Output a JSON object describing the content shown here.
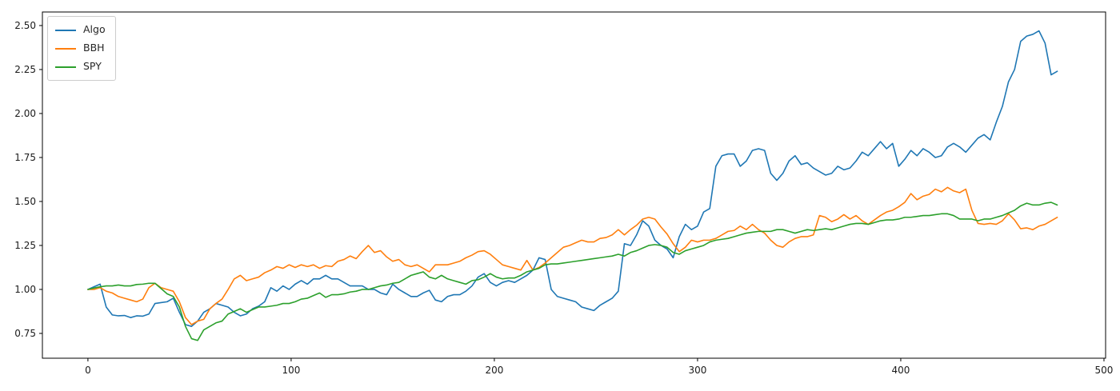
{
  "figure": {
    "background": "#ffffff",
    "axis_color": "#000000",
    "tick_label_color": "#1a1a1a"
  },
  "chart_data": {
    "type": "line",
    "title": "",
    "xlabel": "",
    "ylabel": "",
    "grid": false,
    "legend_position": "upper left",
    "xlim": [
      -22.4,
      500.8
    ],
    "ylim": [
      0.609,
      2.577
    ],
    "xticks": [
      0,
      100,
      200,
      300,
      400,
      500
    ],
    "xtick_labels": [
      "0",
      "100",
      "200",
      "300",
      "400",
      "500"
    ],
    "yticks": [
      0.75,
      1.0,
      1.25,
      1.5,
      1.75,
      2.0,
      2.25,
      2.5
    ],
    "ytick_labels": [
      "0.75",
      "1.00",
      "1.25",
      "1.50",
      "1.75",
      "2.00",
      "2.25",
      "2.50"
    ],
    "x": [
      0,
      3,
      6,
      9,
      12,
      15,
      18,
      21,
      24,
      27,
      30,
      33,
      36,
      39,
      42,
      45,
      48,
      51,
      54,
      57,
      60,
      63,
      66,
      69,
      72,
      75,
      78,
      81,
      84,
      87,
      90,
      93,
      96,
      99,
      102,
      105,
      108,
      111,
      114,
      117,
      120,
      123,
      126,
      129,
      132,
      135,
      138,
      141,
      144,
      147,
      150,
      153,
      156,
      159,
      162,
      165,
      168,
      171,
      174,
      177,
      180,
      183,
      186,
      189,
      192,
      195,
      198,
      201,
      204,
      207,
      210,
      213,
      216,
      219,
      222,
      225,
      228,
      231,
      234,
      237,
      240,
      243,
      246,
      249,
      252,
      255,
      258,
      261,
      264,
      267,
      270,
      273,
      276,
      279,
      282,
      285,
      288,
      291,
      294,
      297,
      300,
      303,
      306,
      309,
      312,
      315,
      318,
      321,
      324,
      327,
      330,
      333,
      336,
      339,
      342,
      345,
      348,
      351,
      354,
      357,
      360,
      363,
      366,
      369,
      372,
      375,
      378,
      381,
      384,
      387,
      390,
      393,
      396,
      399,
      402,
      405,
      408,
      411,
      414,
      417,
      420,
      423,
      426,
      429,
      432,
      435,
      438,
      441,
      444,
      447,
      450,
      453,
      456,
      459,
      462,
      465,
      468,
      471,
      474,
      477
    ],
    "series": [
      {
        "name": "Algo",
        "color": "#1f77b4",
        "values": [
          1,
          1.015,
          1.03,
          0.9,
          0.855,
          0.85,
          0.852,
          0.84,
          0.85,
          0.848,
          0.86,
          0.92,
          0.925,
          0.93,
          0.95,
          0.87,
          0.8,
          0.79,
          0.82,
          0.87,
          0.89,
          0.92,
          0.91,
          0.9,
          0.87,
          0.85,
          0.86,
          0.89,
          0.905,
          0.93,
          1.01,
          0.99,
          1.02,
          1,
          1.03,
          1.05,
          1.03,
          1.06,
          1.06,
          1.08,
          1.06,
          1.06,
          1.04,
          1.02,
          1.02,
          1.02,
          1,
          1,
          0.98,
          0.97,
          1.03,
          1,
          0.98,
          0.96,
          0.96,
          0.98,
          0.995,
          0.94,
          0.93,
          0.96,
          0.97,
          0.97,
          0.99,
          1.02,
          1.07,
          1.09,
          1.04,
          1.02,
          1.04,
          1.05,
          1.04,
          1.06,
          1.08,
          1.11,
          1.18,
          1.17,
          1,
          0.96,
          0.95,
          0.94,
          0.93,
          0.9,
          0.89,
          0.88,
          0.91,
          0.93,
          0.95,
          0.99,
          1.26,
          1.25,
          1.31,
          1.39,
          1.36,
          1.28,
          1.25,
          1.23,
          1.18,
          1.3,
          1.37,
          1.34,
          1.36,
          1.44,
          1.46,
          1.7,
          1.76,
          1.77,
          1.77,
          1.7,
          1.73,
          1.79,
          1.8,
          1.79,
          1.66,
          1.62,
          1.66,
          1.73,
          1.76,
          1.71,
          1.72,
          1.69,
          1.67,
          1.65,
          1.66,
          1.7,
          1.68,
          1.69,
          1.73,
          1.78,
          1.76,
          1.8,
          1.84,
          1.8,
          1.83,
          1.7,
          1.74,
          1.79,
          1.76,
          1.8,
          1.78,
          1.75,
          1.76,
          1.81,
          1.83,
          1.81,
          1.78,
          1.82,
          1.86,
          1.88,
          1.85,
          1.95,
          2.04,
          2.18,
          2.25,
          2.41,
          2.44,
          2.45,
          2.47,
          2.4,
          2.22,
          2.24
        ]
      },
      {
        "name": "BBH",
        "color": "#ff7f0e",
        "values": [
          1,
          1,
          1.01,
          0.99,
          0.98,
          0.96,
          0.95,
          0.94,
          0.93,
          0.945,
          1.01,
          1.035,
          1.01,
          1,
          0.99,
          0.93,
          0.84,
          0.8,
          0.82,
          0.83,
          0.89,
          0.92,
          0.945,
          1,
          1.06,
          1.08,
          1.05,
          1.06,
          1.07,
          1.095,
          1.11,
          1.13,
          1.12,
          1.14,
          1.125,
          1.14,
          1.13,
          1.14,
          1.12,
          1.135,
          1.13,
          1.16,
          1.17,
          1.19,
          1.175,
          1.215,
          1.25,
          1.21,
          1.22,
          1.185,
          1.16,
          1.17,
          1.14,
          1.13,
          1.14,
          1.12,
          1.1,
          1.14,
          1.14,
          1.14,
          1.15,
          1.16,
          1.18,
          1.195,
          1.215,
          1.22,
          1.2,
          1.17,
          1.14,
          1.13,
          1.12,
          1.11,
          1.165,
          1.11,
          1.125,
          1.15,
          1.18,
          1.21,
          1.24,
          1.25,
          1.265,
          1.28,
          1.27,
          1.27,
          1.29,
          1.295,
          1.31,
          1.34,
          1.31,
          1.34,
          1.365,
          1.4,
          1.41,
          1.4,
          1.355,
          1.315,
          1.26,
          1.215,
          1.24,
          1.28,
          1.27,
          1.28,
          1.28,
          1.29,
          1.31,
          1.33,
          1.335,
          1.36,
          1.34,
          1.37,
          1.34,
          1.32,
          1.28,
          1.25,
          1.24,
          1.27,
          1.29,
          1.3,
          1.3,
          1.31,
          1.42,
          1.41,
          1.385,
          1.4,
          1.425,
          1.4,
          1.42,
          1.39,
          1.37,
          1.395,
          1.42,
          1.44,
          1.45,
          1.47,
          1.495,
          1.545,
          1.51,
          1.53,
          1.54,
          1.57,
          1.555,
          1.58,
          1.56,
          1.55,
          1.57,
          1.45,
          1.375,
          1.37,
          1.375,
          1.37,
          1.39,
          1.43,
          1.395,
          1.345,
          1.35,
          1.34,
          1.36,
          1.37,
          1.39,
          1.41
        ]
      },
      {
        "name": "SPY",
        "color": "#2ca02c",
        "values": [
          1,
          1.008,
          1.015,
          1.02,
          1.02,
          1.025,
          1.02,
          1.02,
          1.028,
          1.03,
          1.035,
          1.035,
          1.005,
          0.975,
          0.96,
          0.9,
          0.79,
          0.72,
          0.71,
          0.77,
          0.79,
          0.81,
          0.82,
          0.86,
          0.875,
          0.89,
          0.87,
          0.885,
          0.9,
          0.9,
          0.905,
          0.91,
          0.92,
          0.92,
          0.93,
          0.945,
          0.95,
          0.965,
          0.98,
          0.955,
          0.97,
          0.97,
          0.975,
          0.985,
          0.99,
          1,
          1,
          1.01,
          1.02,
          1.025,
          1.035,
          1.04,
          1.06,
          1.08,
          1.09,
          1.1,
          1.07,
          1.06,
          1.08,
          1.06,
          1.05,
          1.04,
          1.03,
          1.05,
          1.055,
          1.07,
          1.09,
          1.07,
          1.06,
          1.065,
          1.065,
          1.08,
          1.1,
          1.11,
          1.12,
          1.14,
          1.145,
          1.145,
          1.15,
          1.155,
          1.16,
          1.165,
          1.17,
          1.175,
          1.18,
          1.185,
          1.19,
          1.2,
          1.19,
          1.21,
          1.22,
          1.235,
          1.25,
          1.255,
          1.25,
          1.24,
          1.21,
          1.2,
          1.22,
          1.23,
          1.24,
          1.25,
          1.27,
          1.28,
          1.285,
          1.29,
          1.3,
          1.31,
          1.32,
          1.325,
          1.33,
          1.33,
          1.33,
          1.34,
          1.34,
          1.33,
          1.32,
          1.33,
          1.34,
          1.335,
          1.34,
          1.345,
          1.34,
          1.35,
          1.36,
          1.37,
          1.375,
          1.375,
          1.37,
          1.38,
          1.39,
          1.395,
          1.395,
          1.4,
          1.41,
          1.41,
          1.415,
          1.42,
          1.42,
          1.425,
          1.43,
          1.43,
          1.42,
          1.4,
          1.4,
          1.4,
          1.39,
          1.4,
          1.4,
          1.41,
          1.42,
          1.435,
          1.45,
          1.475,
          1.49,
          1.48,
          1.48,
          1.49,
          1.495,
          1.48
        ]
      }
    ]
  }
}
